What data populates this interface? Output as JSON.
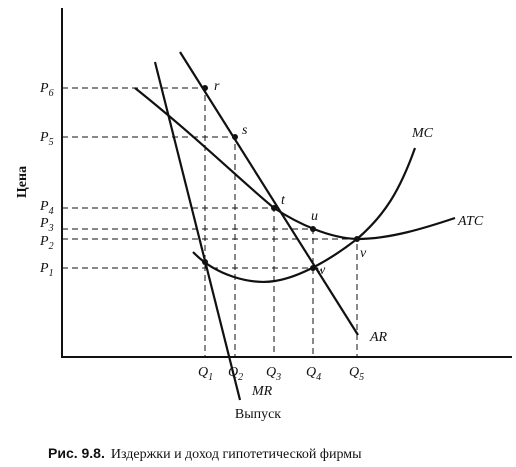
{
  "axes": {
    "y_label": "Цена",
    "x_label": "Выпуск"
  },
  "price_levels": [
    {
      "letter": "P",
      "sub": "6"
    },
    {
      "letter": "P",
      "sub": "5"
    },
    {
      "letter": "P",
      "sub": "4"
    },
    {
      "letter": "P",
      "sub": "3"
    },
    {
      "letter": "P",
      "sub": "2"
    },
    {
      "letter": "P",
      "sub": "1"
    }
  ],
  "quantities": [
    {
      "letter": "Q",
      "sub": "1"
    },
    {
      "letter": "Q",
      "sub": "2"
    },
    {
      "letter": "Q",
      "sub": "3"
    },
    {
      "letter": "Q",
      "sub": "4"
    },
    {
      "letter": "Q",
      "sub": "5"
    }
  ],
  "curves": [
    "MC",
    "ATC",
    "AR",
    "MR"
  ],
  "points": [
    "r",
    "s",
    "t",
    "u",
    "v",
    "w"
  ],
  "caption": {
    "number": "Рис. 9.8.",
    "text": "Издержки и доход гипотетической фирмы"
  }
}
